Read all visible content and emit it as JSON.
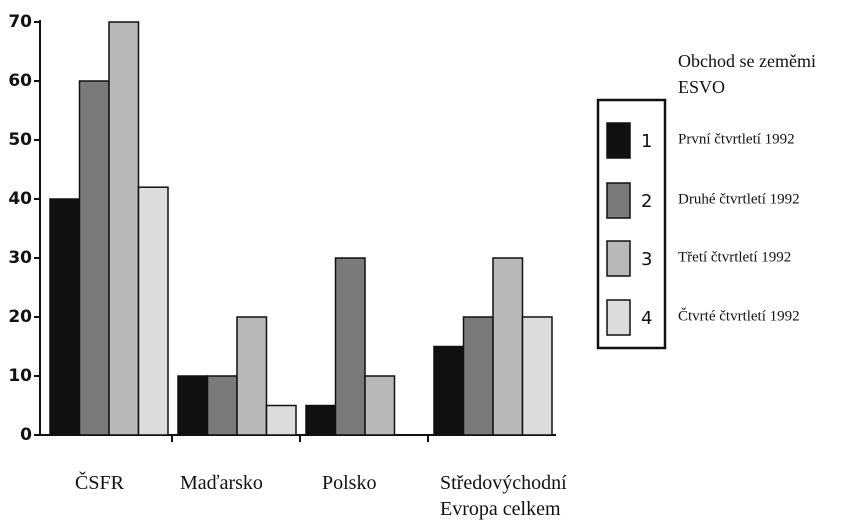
{
  "chart_data": {
    "type": "bar",
    "title": "Obchod se zeměmi\nESVO",
    "categories": [
      "ČSFR",
      "Maďarsko",
      "Polsko",
      "Středovýchodní\nEvropa celkem"
    ],
    "series": [
      {
        "name": "První čtvrtletí 1992",
        "key": "1",
        "color": "#111111",
        "values": [
          40,
          10,
          5,
          15
        ]
      },
      {
        "name": "Druhé čtvrtletí 1992",
        "key": "2",
        "color": "#7a7a7a",
        "values": [
          60,
          10,
          30,
          20
        ]
      },
      {
        "name": "Třetí čtvrtletí 1992",
        "key": "3",
        "color": "#b8b8b8",
        "values": [
          70,
          20,
          10,
          30
        ]
      },
      {
        "name": "Čtvrté čtvrtletí 1992",
        "key": "4",
        "color": "#dcdcdc",
        "values": [
          42,
          5,
          null,
          20
        ]
      }
    ],
    "ylim": [
      0,
      70
    ],
    "yticks": [
      0,
      10,
      20,
      30,
      40,
      50,
      60,
      70
    ],
    "grid": false,
    "legend": "right"
  }
}
